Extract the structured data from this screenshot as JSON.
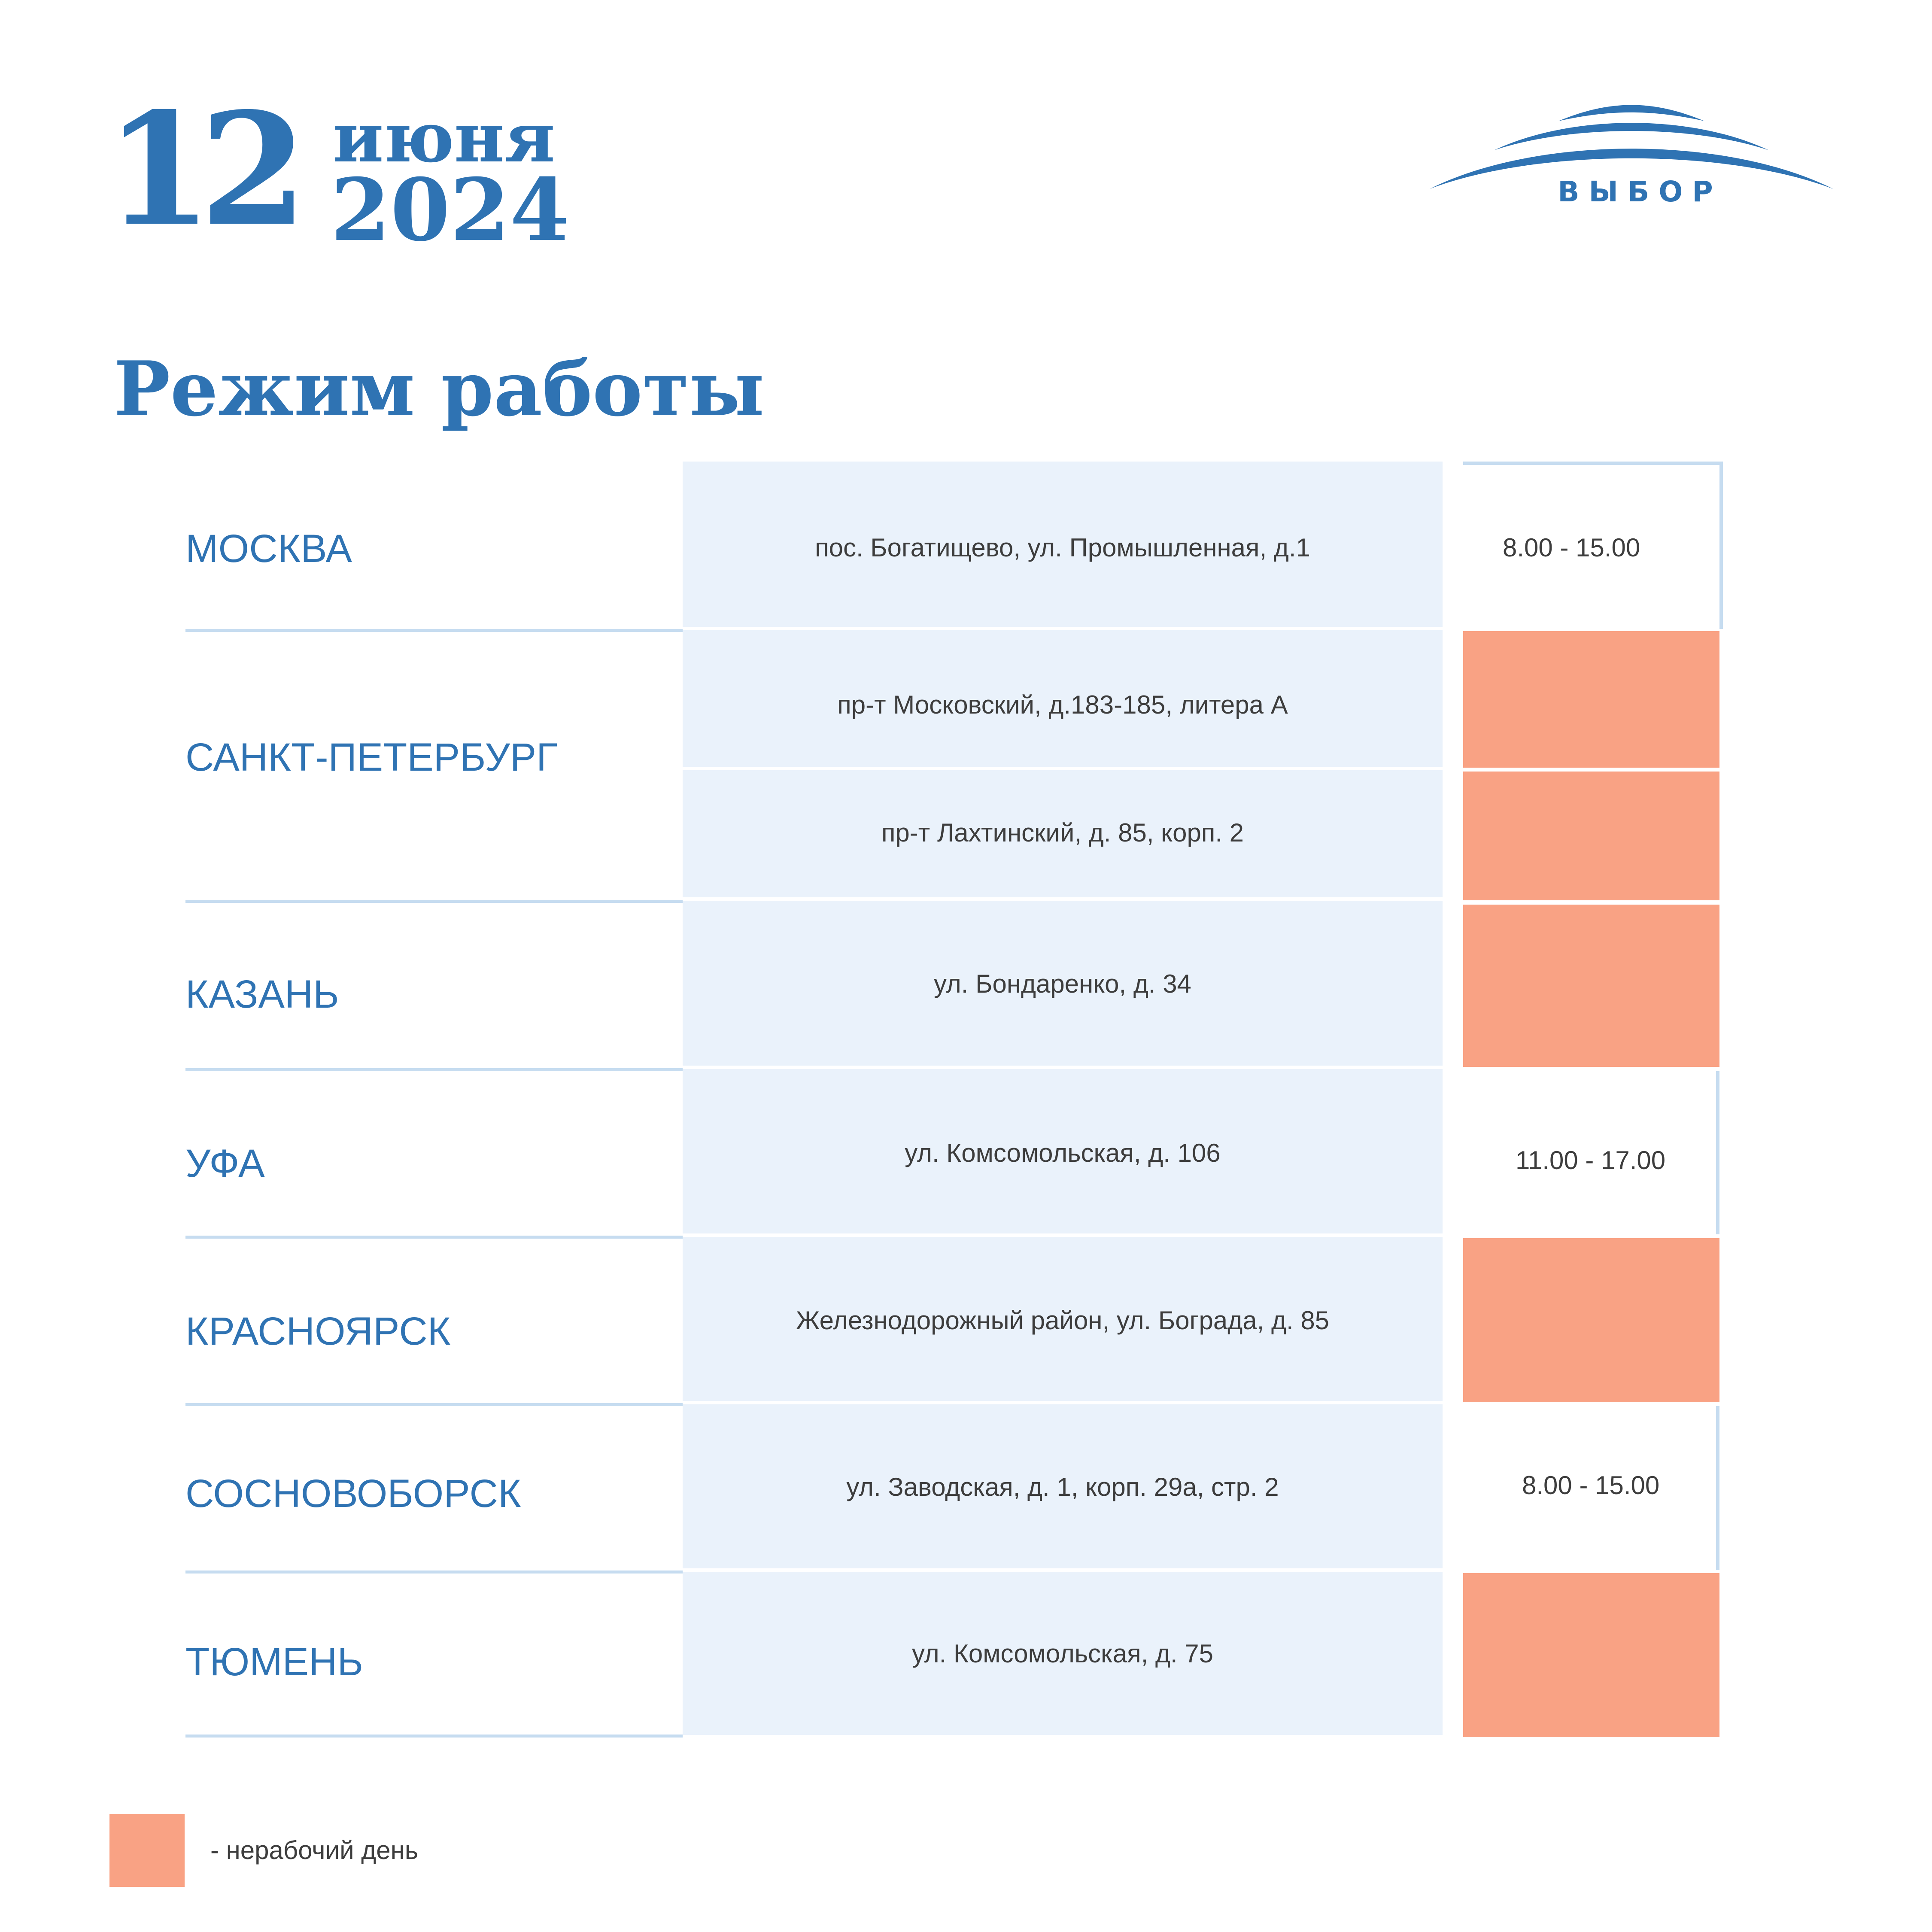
{
  "header": {
    "day": "12",
    "month": "июня",
    "year": "2024",
    "logo_text": "ВЫБОР"
  },
  "title": "Режим работы",
  "colors": {
    "brand": "#2f73b3",
    "address_bg": "#eaf2fb",
    "nonworking": "#f9a284",
    "divider": "#c6dcf0"
  },
  "rows": [
    {
      "city": "МОСКВА",
      "address": "пос. Богатищево, ул. Промышленная, д.1",
      "hours": "8.00 - 15.00"
    },
    {
      "city": "САНКТ-ПЕТЕРБУРГ",
      "address": "пр-т Московский, д.183-185, литера А",
      "hours": ""
    },
    {
      "city": "",
      "address": "пр-т Лахтинский, д. 85, корп. 2",
      "hours": ""
    },
    {
      "city": "КАЗАНЬ",
      "address": "ул. Бондаренко,  д. 34",
      "hours": ""
    },
    {
      "city": "УФА",
      "address": "ул. Комсомольская,  д. 106",
      "hours": "11.00 - 17.00"
    },
    {
      "city": "КРАСНОЯРСК",
      "address": "Железнодорожный район, ул. Бограда, д. 85",
      "hours": ""
    },
    {
      "city": "СОСНОВОБОРСК",
      "address": "ул. Заводская, д. 1, корп. 29а, стр. 2",
      "hours": "8.00 - 15.00"
    },
    {
      "city": "ТЮМЕНЬ",
      "address": "ул. Комсомольская, д. 75",
      "hours": ""
    }
  ],
  "legend": {
    "text": "- нерабочий день"
  }
}
